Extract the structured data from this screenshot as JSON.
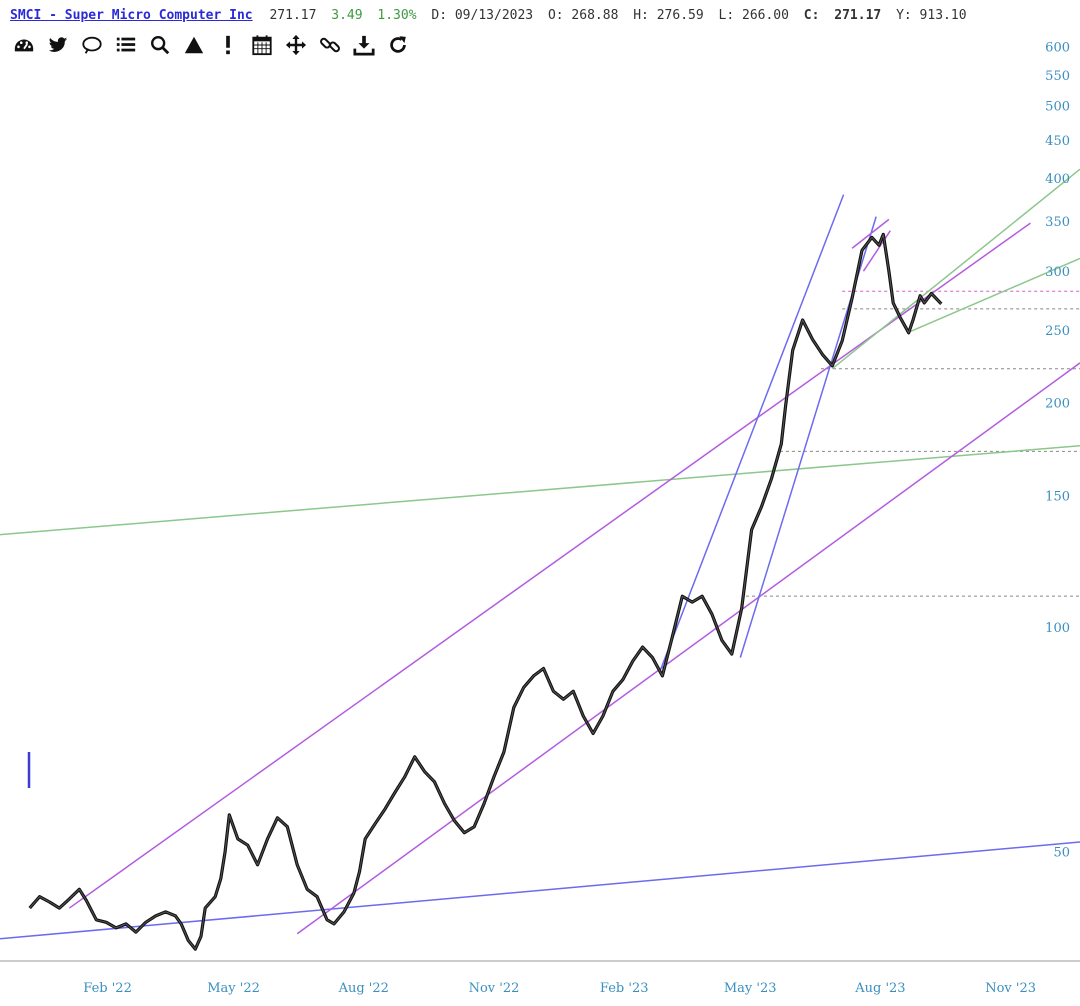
{
  "header": {
    "title": "SMCI - Super Micro Computer Inc",
    "last": "271.17",
    "change": "3.49",
    "change_pct": "1.30%",
    "date": "D: 09/13/2023",
    "open": "O: 268.88",
    "high": "H: 276.59",
    "low": "L: 266.00",
    "close_label": "C:",
    "close": "271.17",
    "y_readout": "Y: 913.10"
  },
  "toolbar": [
    {
      "name": "dashboard-icon"
    },
    {
      "name": "twitter-icon"
    },
    {
      "name": "comment-icon"
    },
    {
      "name": "list-icon"
    },
    {
      "name": "search-icon"
    },
    {
      "name": "triangle-icon"
    },
    {
      "name": "exclamation-icon"
    },
    {
      "name": "calendar-icon"
    },
    {
      "name": "move-icon"
    },
    {
      "name": "link-icon"
    },
    {
      "name": "download-icon"
    },
    {
      "name": "refresh-icon"
    }
  ],
  "colors": {
    "price": "#111111",
    "up_candle": "#3b3bd8",
    "channel_blue": "#6b6bf0",
    "channel_purple": "#b35ce0",
    "trend_green": "#8cc78c",
    "ref_gray": "#888888",
    "ref_magenta": "#d35ad3",
    "axis_text": "#3a8fc0"
  },
  "chart_data": {
    "type": "line",
    "scale": "log",
    "ylim": [
      36,
      620
    ],
    "yticks": [
      600,
      550,
      500,
      450,
      400,
      350,
      300,
      250,
      200,
      150,
      100,
      50
    ],
    "xticks": [
      {
        "date": "2022-02-01",
        "label": "Feb '22"
      },
      {
        "date": "2022-05-01",
        "label": "May '22"
      },
      {
        "date": "2022-08-01",
        "label": "Aug '22"
      },
      {
        "date": "2022-11-01",
        "label": "Nov '22"
      },
      {
        "date": "2023-02-01",
        "label": "Feb '23"
      },
      {
        "date": "2023-05-01",
        "label": "May '23"
      },
      {
        "date": "2023-08-01",
        "label": "Aug '23"
      },
      {
        "date": "2023-11-01",
        "label": "Nov '23"
      }
    ],
    "xrange": [
      "2021-11-17",
      "2023-12-20"
    ],
    "series": [
      {
        "values": [
          [
            "2021-12-08",
            42
          ],
          [
            "2021-12-15",
            43.5
          ],
          [
            "2021-12-22",
            42.8
          ],
          [
            "2021-12-29",
            42
          ],
          [
            "2022-01-05",
            43.2
          ],
          [
            "2022-01-12",
            44.5
          ],
          [
            "2022-01-17",
            43
          ],
          [
            "2022-01-24",
            40.5
          ],
          [
            "2022-01-31",
            40.2
          ],
          [
            "2022-02-07",
            39.5
          ],
          [
            "2022-02-14",
            40
          ],
          [
            "2022-02-21",
            39
          ],
          [
            "2022-02-28",
            40.2
          ],
          [
            "2022-03-07",
            41
          ],
          [
            "2022-03-14",
            41.5
          ],
          [
            "2022-03-21",
            41
          ],
          [
            "2022-03-25",
            40
          ],
          [
            "2022-03-30",
            38
          ],
          [
            "2022-04-04",
            37
          ],
          [
            "2022-04-08",
            38.5
          ],
          [
            "2022-04-11",
            42
          ],
          [
            "2022-04-18",
            43.5
          ],
          [
            "2022-04-22",
            46
          ],
          [
            "2022-04-25",
            50
          ],
          [
            "2022-04-28",
            56
          ],
          [
            "2022-05-04",
            52
          ],
          [
            "2022-05-11",
            51
          ],
          [
            "2022-05-18",
            48
          ],
          [
            "2022-05-25",
            52
          ],
          [
            "2022-06-01",
            55.5
          ],
          [
            "2022-06-08",
            54
          ],
          [
            "2022-06-15",
            48
          ],
          [
            "2022-06-22",
            44.5
          ],
          [
            "2022-06-29",
            43.5
          ],
          [
            "2022-07-06",
            40.5
          ],
          [
            "2022-07-11",
            40
          ],
          [
            "2022-07-18",
            41.5
          ],
          [
            "2022-07-25",
            44
          ],
          [
            "2022-07-29",
            47
          ],
          [
            "2022-08-02",
            52
          ],
          [
            "2022-08-09",
            54.5
          ],
          [
            "2022-08-16",
            57
          ],
          [
            "2022-08-23",
            60
          ],
          [
            "2022-08-30",
            63
          ],
          [
            "2022-09-06",
            67
          ],
          [
            "2022-09-13",
            64
          ],
          [
            "2022-09-20",
            62
          ],
          [
            "2022-09-27",
            58
          ],
          [
            "2022-10-04",
            55
          ],
          [
            "2022-10-11",
            53
          ],
          [
            "2022-10-18",
            54
          ],
          [
            "2022-10-25",
            58
          ],
          [
            "2022-11-01",
            63
          ],
          [
            "2022-11-08",
            68
          ],
          [
            "2022-11-15",
            78
          ],
          [
            "2022-11-22",
            83
          ],
          [
            "2022-11-29",
            86
          ],
          [
            "2022-12-06",
            88
          ],
          [
            "2022-12-13",
            82
          ],
          [
            "2022-12-20",
            80
          ],
          [
            "2022-12-27",
            82
          ],
          [
            "2023-01-03",
            76
          ],
          [
            "2023-01-10",
            72
          ],
          [
            "2023-01-17",
            76
          ],
          [
            "2023-01-24",
            82
          ],
          [
            "2023-01-31",
            85
          ],
          [
            "2023-02-07",
            90
          ],
          [
            "2023-02-14",
            94
          ],
          [
            "2023-02-21",
            91
          ],
          [
            "2023-02-28",
            86
          ],
          [
            "2023-03-07",
            97
          ],
          [
            "2023-03-14",
            110
          ],
          [
            "2023-03-21",
            108
          ],
          [
            "2023-03-28",
            110
          ],
          [
            "2023-04-04",
            104
          ],
          [
            "2023-04-11",
            96
          ],
          [
            "2023-04-18",
            92
          ],
          [
            "2023-04-25",
            106
          ],
          [
            "2023-05-02",
            135
          ],
          [
            "2023-05-09",
            145
          ],
          [
            "2023-05-16",
            158
          ],
          [
            "2023-05-23",
            176
          ],
          [
            "2023-05-26",
            198
          ],
          [
            "2023-05-31",
            235
          ],
          [
            "2023-06-07",
            258
          ],
          [
            "2023-06-14",
            243
          ],
          [
            "2023-06-21",
            232
          ],
          [
            "2023-06-28",
            224
          ],
          [
            "2023-07-05",
            242
          ],
          [
            "2023-07-12",
            276
          ],
          [
            "2023-07-19",
            320
          ],
          [
            "2023-07-26",
            333
          ],
          [
            "2023-07-31",
            325
          ],
          [
            "2023-08-03",
            336
          ],
          [
            "2023-08-07",
            300
          ],
          [
            "2023-08-10",
            272
          ],
          [
            "2023-08-15",
            260
          ],
          [
            "2023-08-21",
            248
          ],
          [
            "2023-08-24",
            258
          ],
          [
            "2023-08-29",
            278
          ],
          [
            "2023-09-01",
            272
          ],
          [
            "2023-09-06",
            280
          ],
          [
            "2023-09-13",
            271.17
          ]
        ]
      }
    ],
    "reference_levels": [
      {
        "value": 282,
        "from": "2023-07-05",
        "to": "2023-12-20",
        "style": "magenta-dashed"
      },
      {
        "value": 267,
        "from": "2023-07-05",
        "to": "2023-12-20",
        "style": "gray-dashed"
      },
      {
        "value": 222,
        "from": "2023-06-20",
        "to": "2023-12-20",
        "style": "gray-dashed"
      },
      {
        "value": 172,
        "from": "2023-05-22",
        "to": "2023-12-20",
        "style": "gray-dashed"
      },
      {
        "value": 110,
        "from": "2023-04-28",
        "to": "2023-12-20",
        "style": "gray-dashed"
      }
    ],
    "trendlines": [
      {
        "style": "blue",
        "from": [
          "2021-11-17",
          38.2
        ],
        "to": [
          "2023-12-20",
          51.5
        ]
      },
      {
        "style": "green",
        "from": [
          "2021-11-17",
          133
        ],
        "to": [
          "2023-12-20",
          175
        ]
      },
      {
        "style": "purple",
        "from": [
          "2022-01-05",
          42
        ],
        "to": [
          "2023-11-15",
          348
        ]
      },
      {
        "style": "purple",
        "from": [
          "2022-06-15",
          38.8
        ],
        "to": [
          "2023-12-20",
          226
        ]
      },
      {
        "style": "blue",
        "from": [
          "2023-02-26",
          87
        ],
        "to": [
          "2023-07-06",
          380
        ]
      },
      {
        "style": "blue",
        "from": [
          "2023-04-24",
          91
        ],
        "to": [
          "2023-07-29",
          355
        ]
      },
      {
        "style": "green",
        "from": [
          "2023-06-28",
          222
        ],
        "to": [
          "2023-12-20",
          411
        ]
      },
      {
        "style": "green",
        "from": [
          "2023-08-20",
          248
        ],
        "to": [
          "2023-12-20",
          312
        ]
      },
      {
        "style": "purple",
        "from": [
          "2023-07-12",
          322
        ],
        "to": [
          "2023-08-07",
          352
        ]
      },
      {
        "style": "purple",
        "from": [
          "2023-07-20",
          300
        ],
        "to": [
          "2023-08-08",
          340
        ]
      }
    ]
  }
}
